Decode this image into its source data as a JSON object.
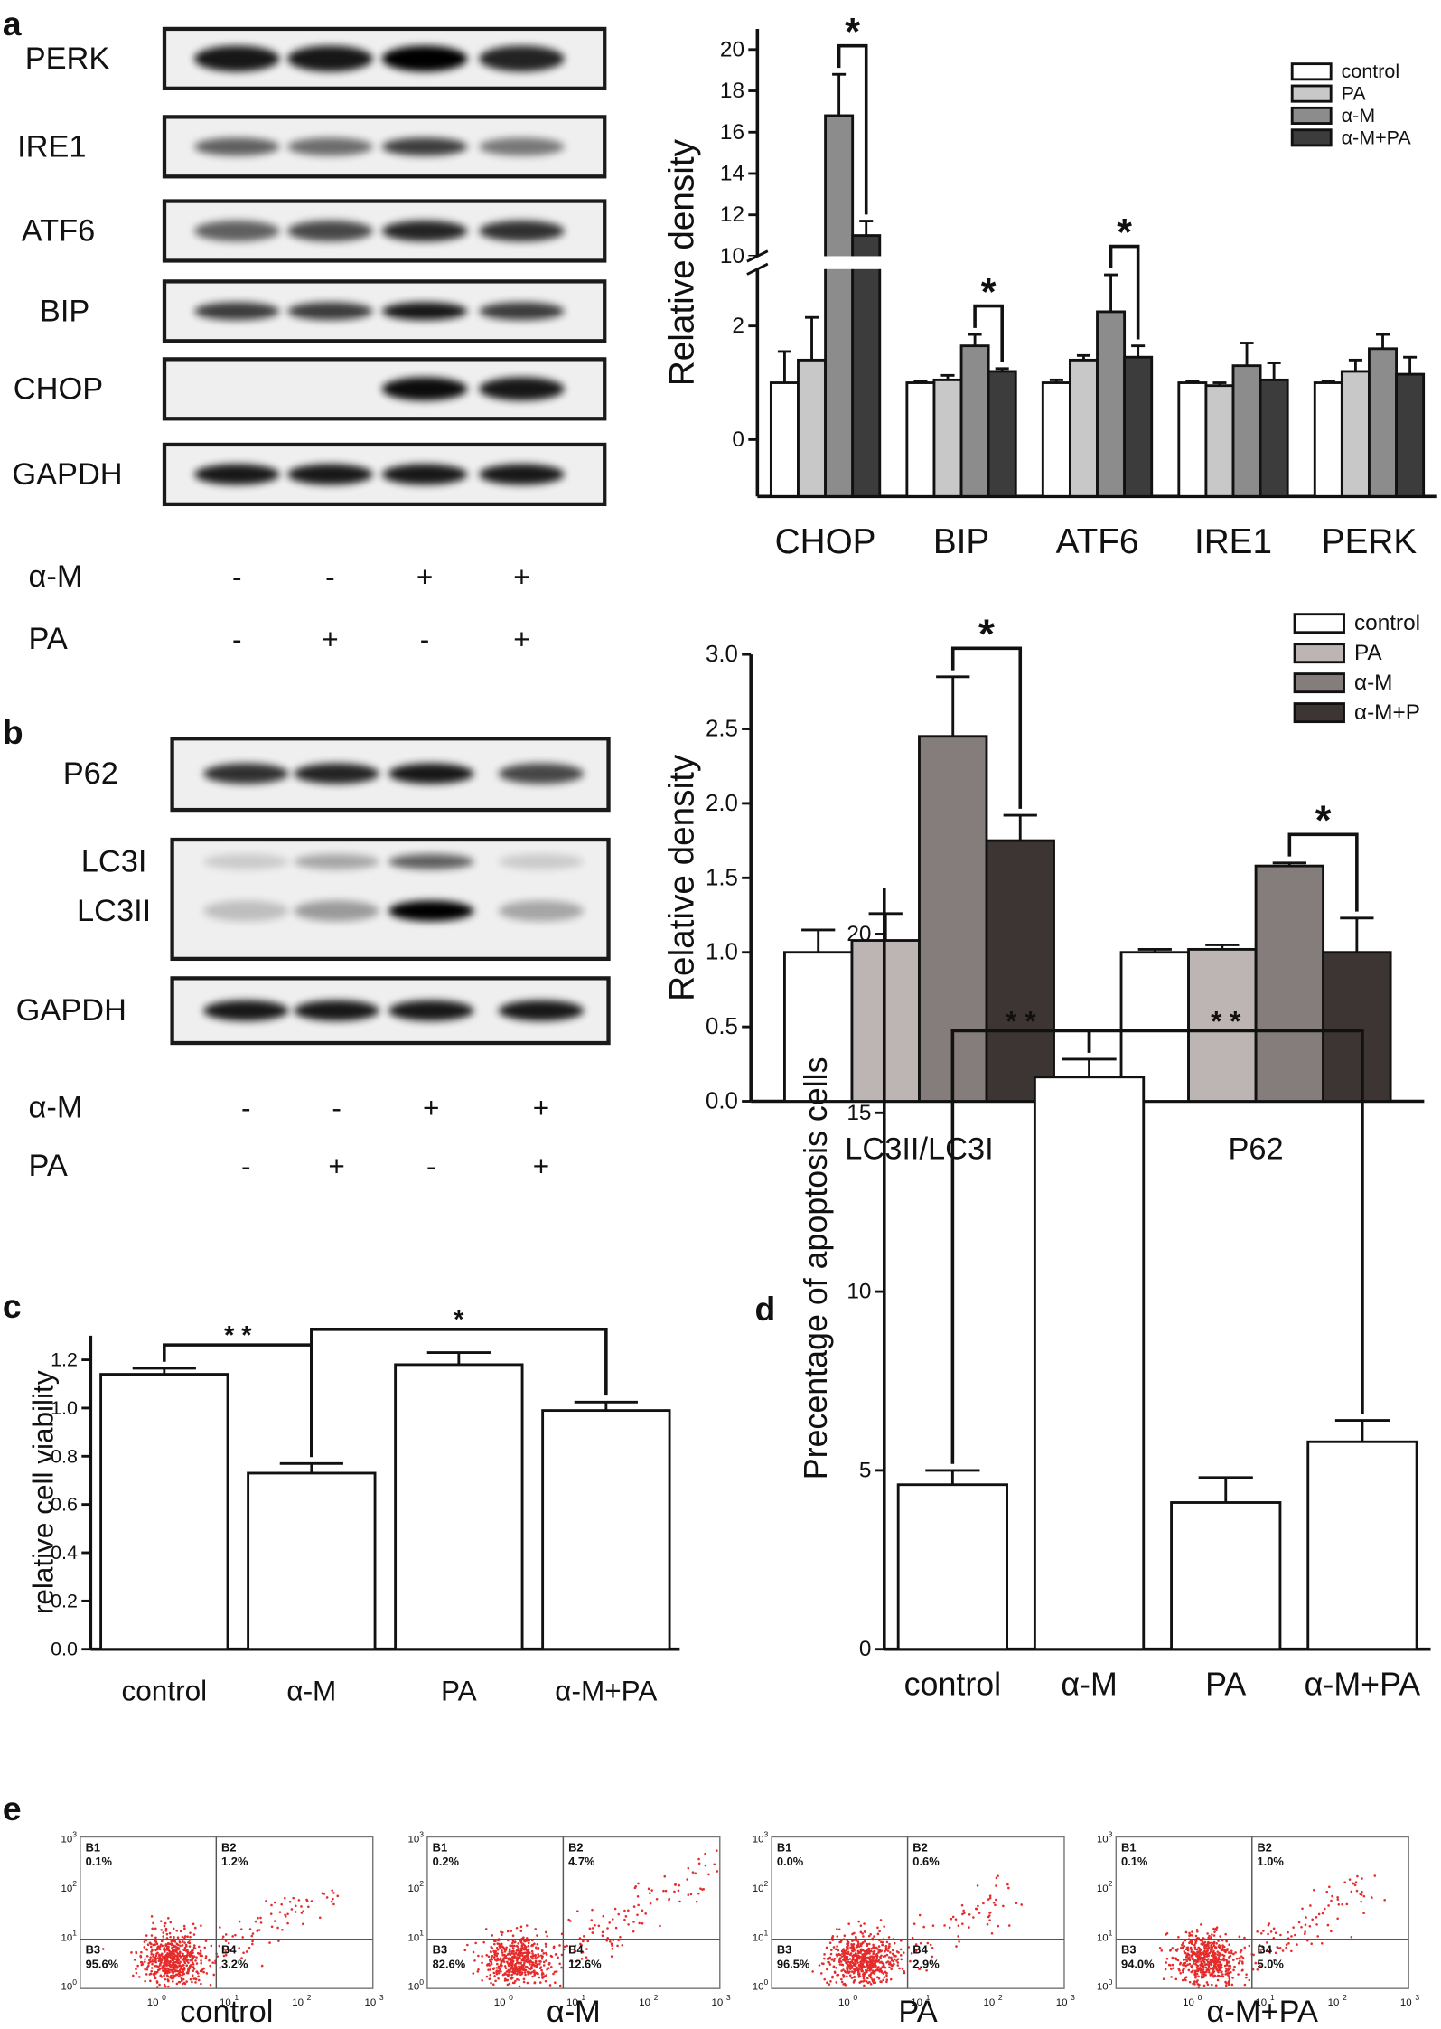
{
  "panel_labels": [
    "a",
    "b",
    "c",
    "d",
    "e"
  ],
  "blots": [
    {
      "rows": [
        "PERK",
        "IRE1",
        "ATF6",
        "BIP",
        "CHOP",
        "GAPDH"
      ],
      "treatments": [
        {
          "name": "α-M",
          "signs": [
            "-",
            "-",
            "+",
            "+"
          ]
        },
        {
          "name": "PA",
          "signs": [
            "-",
            "+",
            "-",
            "+"
          ]
        }
      ]
    },
    {
      "rows": [
        "P62",
        "LC3I",
        "LC3II",
        "GAPDH"
      ],
      "treatments": [
        {
          "name": "α-M",
          "signs": [
            "-",
            "-",
            "+",
            "+"
          ]
        },
        {
          "name": "PA",
          "signs": [
            "-",
            "+",
            "-",
            "+"
          ]
        }
      ]
    }
  ],
  "chart_data": [
    {
      "type": "bar",
      "y_label": "Relative density",
      "categories": [
        "CHOP",
        "BIP",
        "ATF6",
        "IRE1",
        "PERK"
      ],
      "series": [
        {
          "name": "control",
          "color": "#ffffff",
          "values": [
            1.0,
            1.0,
            1.0,
            1.0,
            1.0
          ],
          "errors": [
            0.55,
            0.03,
            0.05,
            0.02,
            0.03
          ]
        },
        {
          "name": "PA",
          "color": "#c8c8c8",
          "values": [
            1.4,
            1.05,
            1.4,
            0.95,
            1.2
          ],
          "errors": [
            0.75,
            0.08,
            0.08,
            0.05,
            0.2
          ]
        },
        {
          "name": "α-M",
          "color": "#8c8c8c",
          "values": [
            16.8,
            1.65,
            2.25,
            1.3,
            1.6
          ],
          "errors": [
            2.0,
            0.2,
            0.65,
            0.4,
            0.25
          ]
        },
        {
          "name": "α-M+PA",
          "color": "#3c3c3c",
          "values": [
            11.0,
            1.2,
            1.45,
            1.05,
            1.15
          ],
          "errors": [
            0.7,
            0.05,
            0.2,
            0.3,
            0.3
          ]
        }
      ],
      "ylim": [
        -1,
        21
      ],
      "ybreak": [
        3,
        10
      ],
      "yticks": [
        0,
        2,
        10,
        12,
        14,
        16,
        18,
        20
      ],
      "legend": "upper right",
      "significance": [
        {
          "label": "*",
          "category": "CHOP",
          "pair": [
            "α-M",
            "α-M+PA"
          ]
        },
        {
          "label": "*",
          "category": "BIP",
          "pair": [
            "α-M",
            "α-M+PA"
          ]
        },
        {
          "label": "*",
          "category": "ATF6",
          "pair": [
            "α-M",
            "α-M+PA"
          ]
        }
      ]
    },
    {
      "type": "bar",
      "y_label": "Relative density",
      "categories": [
        "LC3II/LC3I",
        "P62"
      ],
      "series": [
        {
          "name": "control",
          "color": "#ffffff",
          "values": [
            1.0,
            1.0
          ],
          "errors": [
            0.15,
            0.02
          ]
        },
        {
          "name": "PA",
          "color": "#bdb5b3",
          "values": [
            1.08,
            1.02
          ],
          "errors": [
            0.18,
            0.03
          ]
        },
        {
          "name": "α-M",
          "color": "#857d7b",
          "values": [
            2.45,
            1.58
          ],
          "errors": [
            0.4,
            0.02
          ]
        },
        {
          "name": "α-M+P",
          "color": "#3d3533",
          "values": [
            1.75,
            1.0
          ],
          "errors": [
            0.17,
            0.23
          ]
        }
      ],
      "ylim": [
        0,
        3.0
      ],
      "yticks": [
        {
          "value": 0,
          "label": "0.0"
        },
        {
          "value": 0.5,
          "label": "0.5"
        },
        {
          "value": 1,
          "label": "1.0"
        },
        {
          "value": 1.5,
          "label": "1.5"
        },
        {
          "value": 2,
          "label": "2.0"
        },
        {
          "value": 2.5,
          "label": "2.5"
        },
        {
          "value": 3,
          "label": "3.0"
        }
      ],
      "legend": "upper right",
      "significance": [
        {
          "label": "*",
          "category": "LC3II/LC3I",
          "pair": [
            "α-M",
            "α-M+P"
          ]
        },
        {
          "label": "*",
          "category": "P62",
          "pair": [
            "α-M",
            "α-M+P"
          ]
        }
      ]
    },
    {
      "type": "bar",
      "y_label": "relative cell viability",
      "categories": [
        "control",
        "α-M",
        "PA",
        "α-M+PA"
      ],
      "values": [
        1.14,
        0.73,
        1.18,
        0.99
      ],
      "errors": [
        0.025,
        0.04,
        0.05,
        0.035
      ],
      "color": "#ffffff",
      "ylim": [
        0,
        1.3
      ],
      "yticks": [
        {
          "value": 0,
          "label": "0.0"
        },
        {
          "value": 0.2,
          "label": "0.2"
        },
        {
          "value": 0.4,
          "label": "0.4"
        },
        {
          "value": 0.6,
          "label": "0.6"
        },
        {
          "value": 0.8,
          "label": "0.8"
        },
        {
          "value": 1,
          "label": "1.0"
        },
        {
          "value": 1.2,
          "label": "1.2"
        }
      ],
      "significance": [
        {
          "label": "* *",
          "pair": [
            "control",
            "α-M"
          ]
        },
        {
          "label": "*",
          "pair": [
            "α-M",
            "α-M+PA"
          ]
        }
      ]
    },
    {
      "type": "bar",
      "y_label": "Precentage of apoptosis cells",
      "categories": [
        "control",
        "α-M",
        "PA",
        "α-M+PA"
      ],
      "values": [
        4.6,
        16.0,
        4.1,
        5.8
      ],
      "errors": [
        0.4,
        0.5,
        0.7,
        0.6
      ],
      "color": "#ffffff",
      "ylim": [
        0,
        21.3
      ],
      "yticks": [
        0,
        5,
        10,
        15,
        20
      ],
      "significance": [
        {
          "label": "* *",
          "pair": [
            "control",
            "α-M"
          ]
        },
        {
          "label": "* *",
          "pair": [
            "α-M",
            "α-M+PA"
          ]
        }
      ]
    }
  ],
  "flow": {
    "axis_base": "10",
    "axis_exponents": [
      "0",
      "1",
      "2",
      "3"
    ],
    "panels": [
      {
        "label": "control",
        "quadrants": [
          {
            "name": "B1",
            "value": "0.1%"
          },
          {
            "name": "B2",
            "value": "1.2%"
          },
          {
            "name": "B3",
            "value": "95.6%"
          },
          {
            "name": "B4",
            "value": "3.2%"
          }
        ]
      },
      {
        "label": "α-M",
        "quadrants": [
          {
            "name": "B1",
            "value": "0.2%"
          },
          {
            "name": "B2",
            "value": "4.7%"
          },
          {
            "name": "B3",
            "value": "82.6%"
          },
          {
            "name": "B4",
            "value": "12.6%"
          }
        ]
      },
      {
        "label": "PA",
        "quadrants": [
          {
            "name": "B1",
            "value": "0.0%"
          },
          {
            "name": "B2",
            "value": "0.6%"
          },
          {
            "name": "B3",
            "value": "96.5%"
          },
          {
            "name": "B4",
            "value": "2.9%"
          }
        ]
      },
      {
        "label": "α-M+PA",
        "quadrants": [
          {
            "name": "B1",
            "value": "0.1%"
          },
          {
            "name": "B2",
            "value": "1.0%"
          },
          {
            "name": "B3",
            "value": "94.0%"
          },
          {
            "name": "B4",
            "value": "5.0%"
          }
        ]
      }
    ]
  }
}
